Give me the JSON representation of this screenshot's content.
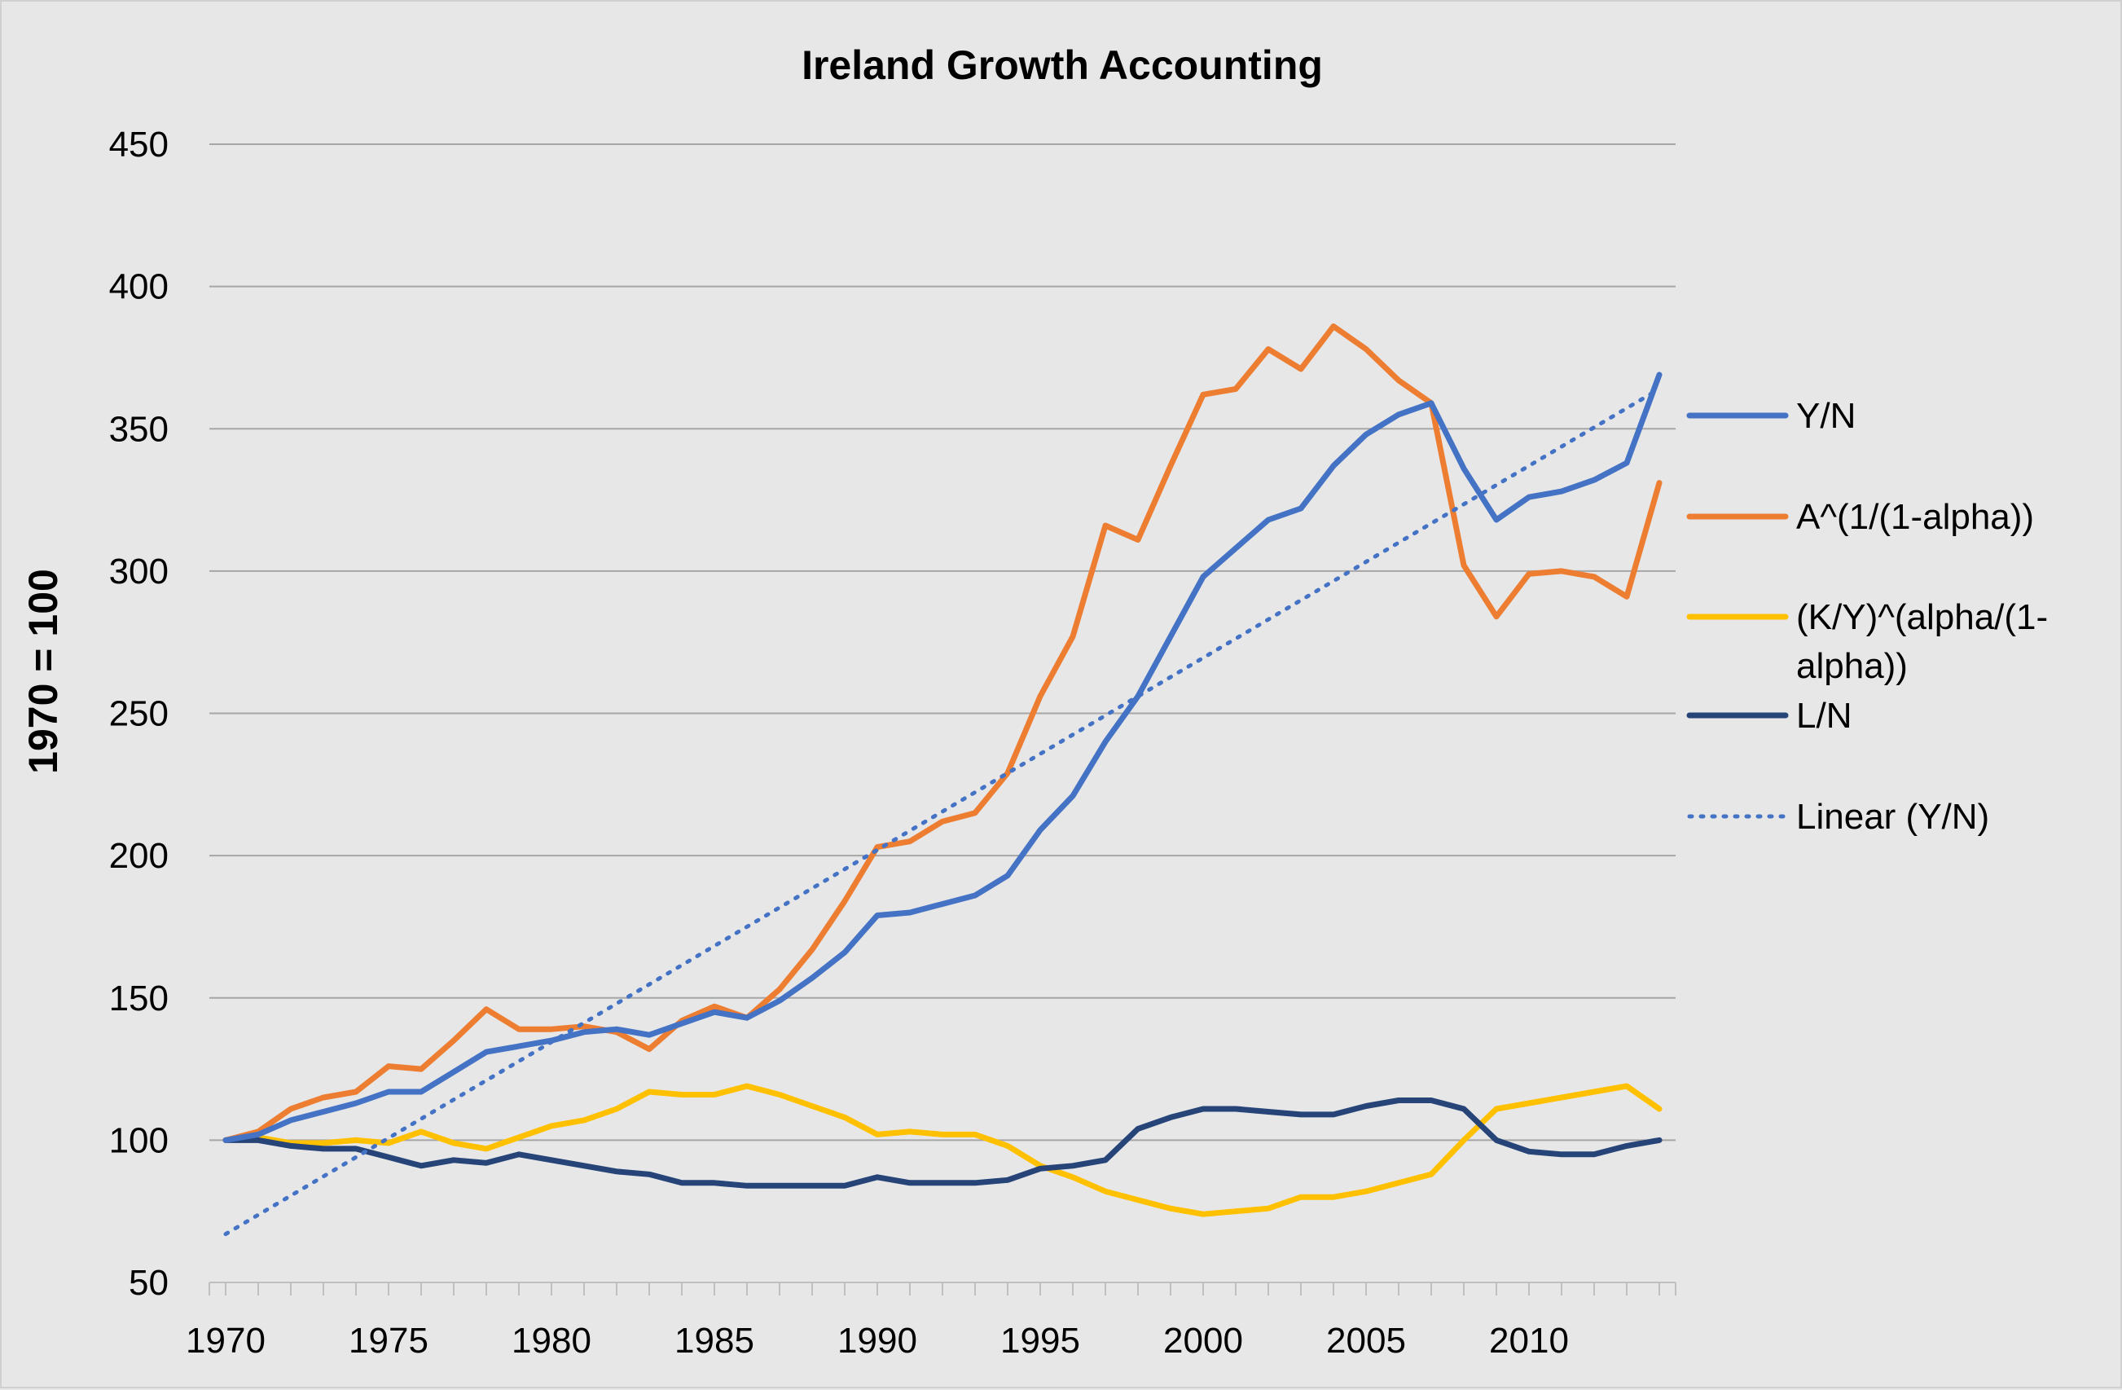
{
  "chart_data": {
    "type": "line",
    "title": "Ireland Growth Accounting",
    "xlabel": "",
    "ylabel": "1970 = 100",
    "xlim": [
      1970,
      2014
    ],
    "ylim": [
      50,
      450
    ],
    "yticks": [
      50,
      100,
      150,
      200,
      250,
      300,
      350,
      400,
      450
    ],
    "xticks": [
      1970,
      1975,
      1980,
      1985,
      1990,
      1995,
      2000,
      2005,
      2010
    ],
    "grid": true,
    "legend_position": "right",
    "x": [
      1970,
      1971,
      1972,
      1973,
      1974,
      1975,
      1976,
      1977,
      1978,
      1979,
      1980,
      1981,
      1982,
      1983,
      1984,
      1985,
      1986,
      1987,
      1988,
      1989,
      1990,
      1991,
      1992,
      1993,
      1994,
      1995,
      1996,
      1997,
      1998,
      1999,
      2000,
      2001,
      2002,
      2003,
      2004,
      2005,
      2006,
      2007,
      2008,
      2009,
      2010,
      2011,
      2012,
      2013,
      2014
    ],
    "series": [
      {
        "name": "Y/N",
        "color": "#4472c4",
        "style": "solid",
        "values": [
          100,
          102,
          107,
          110,
          113,
          117,
          117,
          124,
          131,
          133,
          135,
          138,
          139,
          137,
          141,
          145,
          143,
          149,
          157,
          166,
          179,
          180,
          183,
          186,
          193,
          209,
          221,
          240,
          256,
          277,
          298,
          308,
          318,
          322,
          337,
          348,
          355,
          359,
          336,
          318,
          326,
          328,
          332,
          338,
          369
        ]
      },
      {
        "name": "A^(1/(1-alpha))",
        "color": "#ed7d31",
        "style": "solid",
        "values": [
          100,
          103,
          111,
          115,
          117,
          126,
          125,
          135,
          146,
          139,
          139,
          140,
          138,
          132,
          142,
          147,
          143,
          153,
          167,
          184,
          203,
          205,
          212,
          215,
          229,
          256,
          277,
          316,
          311,
          337,
          362,
          364,
          378,
          371,
          386,
          378,
          367,
          359,
          302,
          284,
          299,
          300,
          298,
          291,
          331
        ]
      },
      {
        "name": "(K/Y)^(alpha/(1-alpha))",
        "color": "#ffc000",
        "style": "solid",
        "values": [
          100,
          101,
          99,
          99,
          100,
          99,
          103,
          99,
          97,
          101,
          105,
          107,
          111,
          117,
          116,
          116,
          119,
          116,
          112,
          108,
          102,
          103,
          102,
          102,
          98,
          91,
          87,
          82,
          79,
          76,
          74,
          75,
          76,
          80,
          80,
          82,
          85,
          88,
          100,
          111,
          113,
          115,
          117,
          119,
          111
        ]
      },
      {
        "name": "L/N",
        "color": "#264478",
        "style": "solid",
        "values": [
          100,
          100,
          98,
          97,
          97,
          94,
          91,
          93,
          92,
          95,
          93,
          91,
          89,
          88,
          85,
          85,
          84,
          84,
          84,
          84,
          87,
          85,
          85,
          85,
          86,
          90,
          91,
          93,
          104,
          108,
          111,
          111,
          110,
          109,
          109,
          112,
          114,
          114,
          111,
          100,
          96,
          95,
          95,
          98,
          100
        ]
      },
      {
        "name": "Linear (Y/N)",
        "color": "#4472c4",
        "style": "dotted",
        "values_start_end": [
          [
            1970,
            67
          ],
          [
            2014,
            364
          ]
        ]
      }
    ]
  }
}
